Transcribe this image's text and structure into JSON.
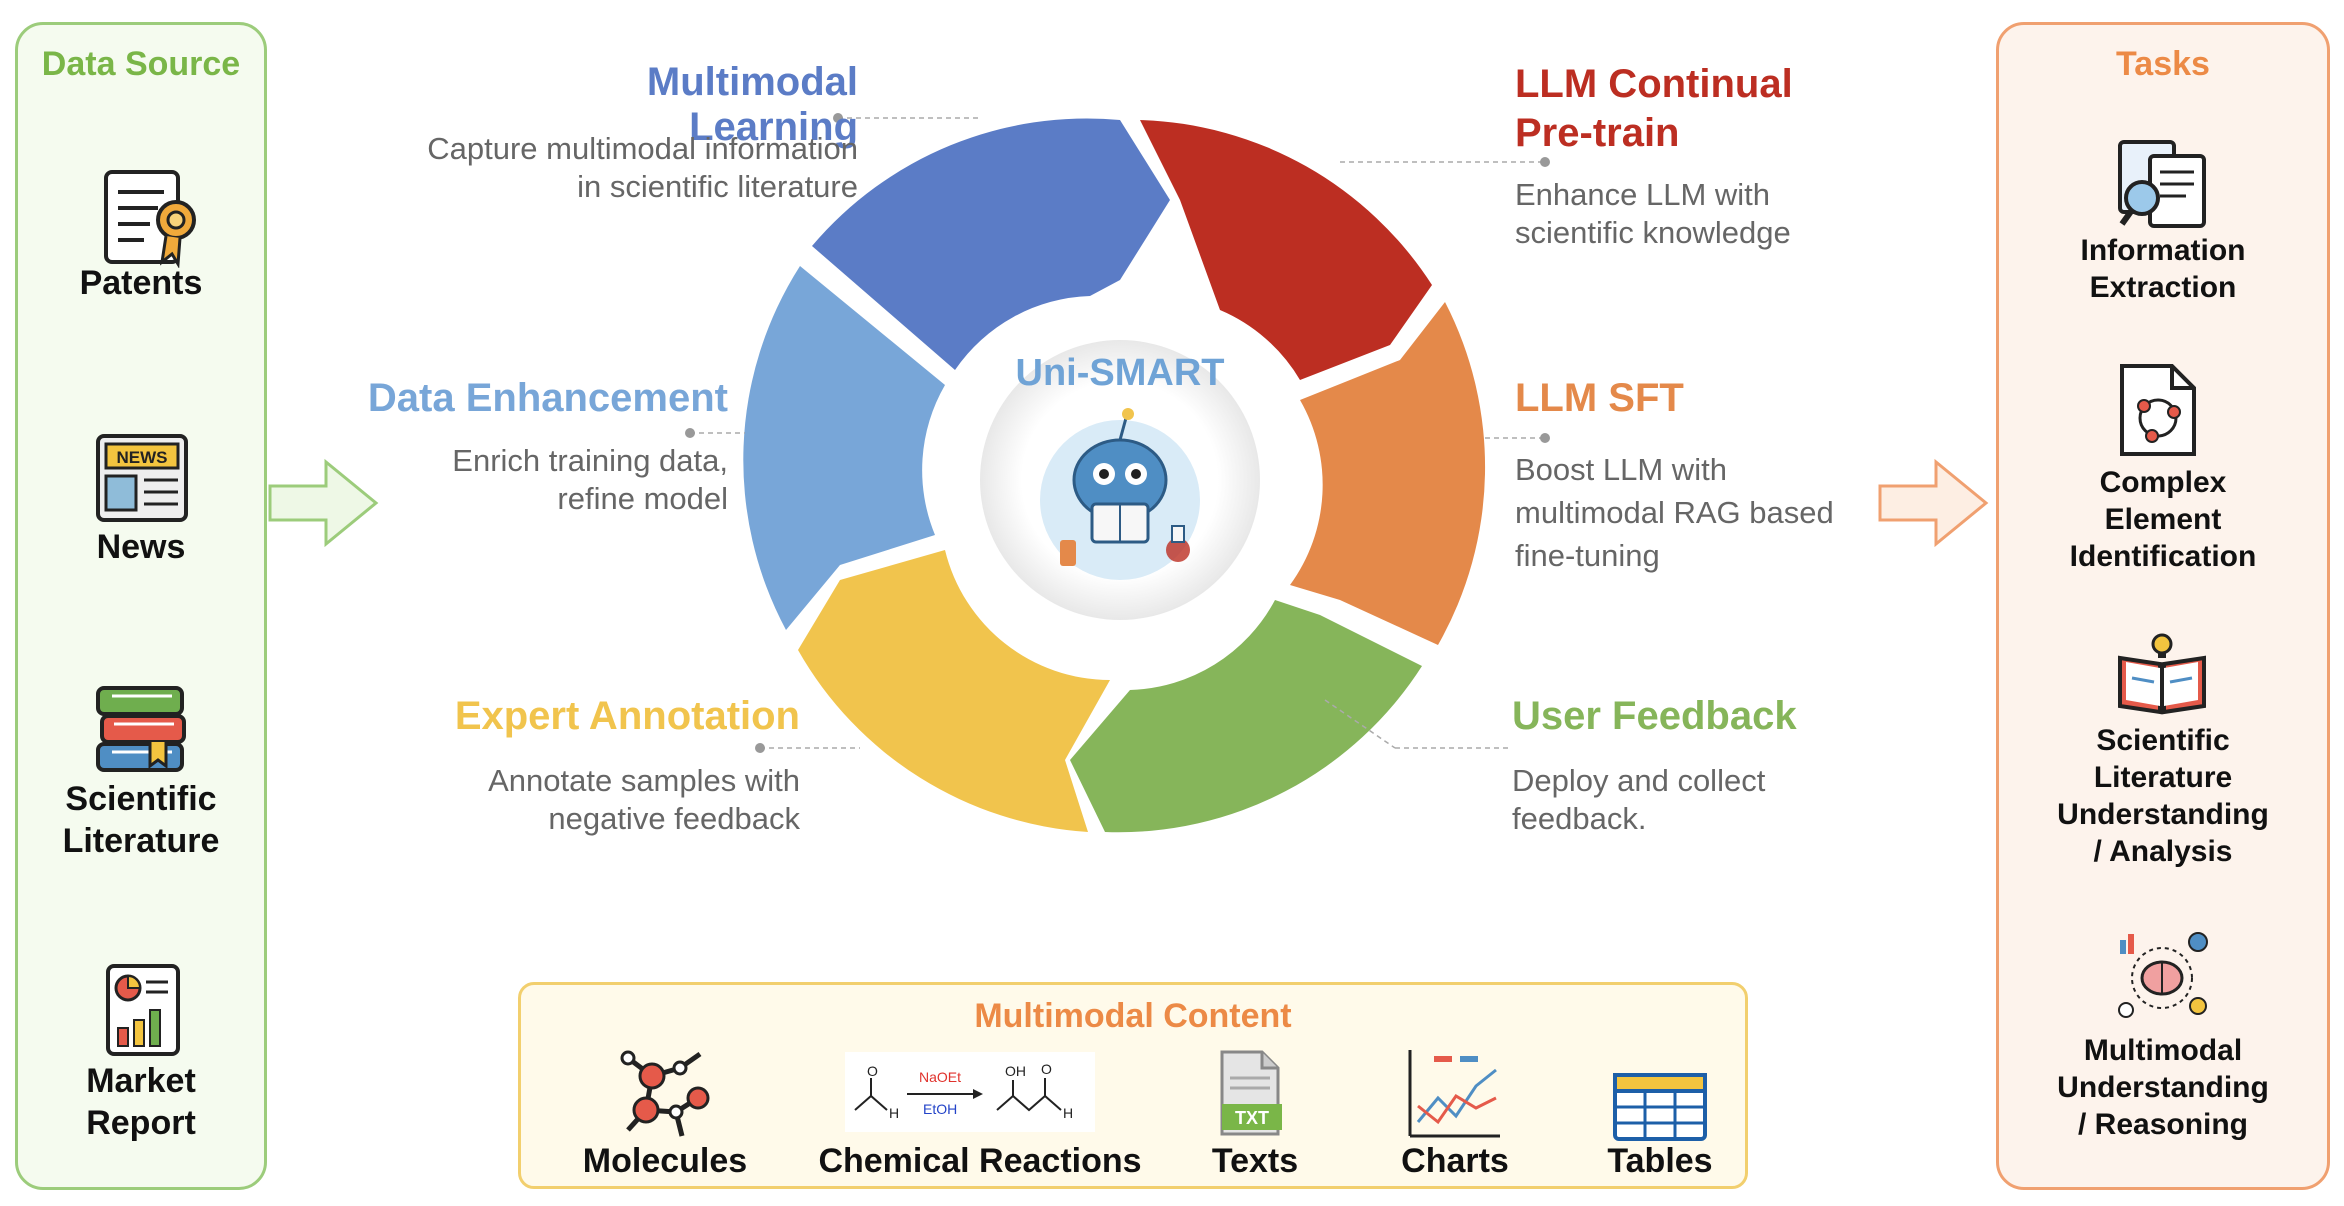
{
  "data_source": {
    "title": "Data Source",
    "items": [
      {
        "label_lines": [
          "Patents"
        ],
        "icon": "patent-certificate-icon"
      },
      {
        "label_lines": [
          "News"
        ],
        "icon": "newspaper-icon",
        "badge": "NEWS"
      },
      {
        "label_lines": [
          "Scientific",
          "Literature"
        ],
        "icon": "books-stack-icon"
      },
      {
        "label_lines": [
          "Market",
          "Report"
        ],
        "icon": "market-report-icon"
      }
    ]
  },
  "cycle": {
    "hub_title": "Uni-SMART",
    "stages": [
      {
        "id": "multimodal-learning",
        "title": "Multimodal Learning",
        "color": "#5b7cc6",
        "desc_lines": [
          "Capture multimodal information",
          "in scientific literature"
        ]
      },
      {
        "id": "llm-continual-pretrain",
        "title_lines": [
          "LLM Continual",
          "Pre-train"
        ],
        "color": "#bc2e22",
        "desc_lines": [
          "Enhance LLM with",
          "scientific knowledge"
        ]
      },
      {
        "id": "llm-sft",
        "title": "LLM SFT",
        "color": "#e4894a",
        "desc_lines": [
          "Boost LLM with",
          "multimodal RAG based",
          "fine-tuning"
        ]
      },
      {
        "id": "user-feedback",
        "title": "User Feedback",
        "color": "#86b55a",
        "desc_lines": [
          "Deploy and collect",
          "feedback."
        ]
      },
      {
        "id": "expert-annotation",
        "title": "Expert Annotation",
        "color": "#f1c44d",
        "desc_lines": [
          "Annotate samples with",
          "negative feedback"
        ]
      },
      {
        "id": "data-enhancement",
        "title": "Data Enhancement",
        "color": "#78a6d8",
        "desc_lines": [
          "Enrich training data,",
          "refine model"
        ]
      }
    ]
  },
  "multimodal_content": {
    "title": "Multimodal Content",
    "items": [
      "Molecules",
      "Chemical Reactions",
      "Texts",
      "Charts",
      "Tables"
    ],
    "reaction": {
      "reagent": "NaOEt",
      "solvent": "EtOH",
      "oh": "OH",
      "o_left": "O",
      "h_left": "H",
      "o_right": "O",
      "h_right": "H"
    },
    "text_badge": "TXT"
  },
  "tasks": {
    "title": "Tasks",
    "items": [
      {
        "label_lines": [
          "Information",
          "Extraction"
        ],
        "icon": "document-search-icon"
      },
      {
        "label_lines": [
          "Complex",
          "Element",
          "Identification"
        ],
        "icon": "document-graph-icon"
      },
      {
        "label_lines": [
          "Scientific",
          "Literature",
          "Understanding",
          "/ Analysis"
        ],
        "icon": "open-book-bulb-icon"
      },
      {
        "label_lines": [
          "Multimodal",
          "Understanding",
          "/ Reasoning"
        ],
        "icon": "brain-reasoning-icon"
      }
    ]
  },
  "colors": {
    "source_green": "#7ab648",
    "tasks_orange": "#ec8a46",
    "content_orange": "#ec8a46"
  }
}
